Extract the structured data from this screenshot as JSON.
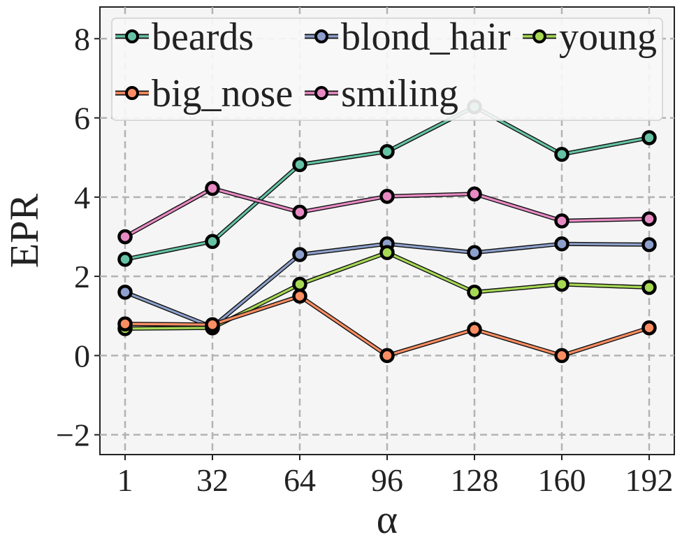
{
  "chart_data": {
    "type": "line",
    "title": "",
    "xlabel": "α",
    "ylabel": "EPR",
    "x": [
      "1",
      "32",
      "64",
      "96",
      "128",
      "160",
      "192"
    ],
    "yticks": [
      "−2",
      "0",
      "2",
      "4",
      "6",
      "8"
    ],
    "ytick_values": [
      -2,
      0,
      2,
      4,
      6,
      8
    ],
    "ylim": [
      -2.5,
      8.8
    ],
    "grid": true,
    "legend_position": "top",
    "series": [
      {
        "name": "beards",
        "color": "#66c2a5",
        "values": [
          2.43,
          2.88,
          4.82,
          5.15,
          6.28,
          5.08,
          5.5
        ]
      },
      {
        "name": "blond_hair",
        "color": "#8da0cb",
        "values": [
          1.6,
          0.72,
          2.55,
          2.82,
          2.6,
          2.82,
          2.8
        ]
      },
      {
        "name": "young",
        "color": "#a6d854",
        "values": [
          0.68,
          0.7,
          1.8,
          2.6,
          1.6,
          1.8,
          1.72
        ]
      },
      {
        "name": "big_nose",
        "color": "#fc8d62",
        "values": [
          0.8,
          0.78,
          1.5,
          0.0,
          0.66,
          0.0,
          0.7
        ]
      },
      {
        "name": "smiling",
        "color": "#e78ac3",
        "values": [
          3.0,
          4.22,
          3.62,
          4.02,
          4.08,
          3.4,
          3.45
        ]
      }
    ]
  }
}
